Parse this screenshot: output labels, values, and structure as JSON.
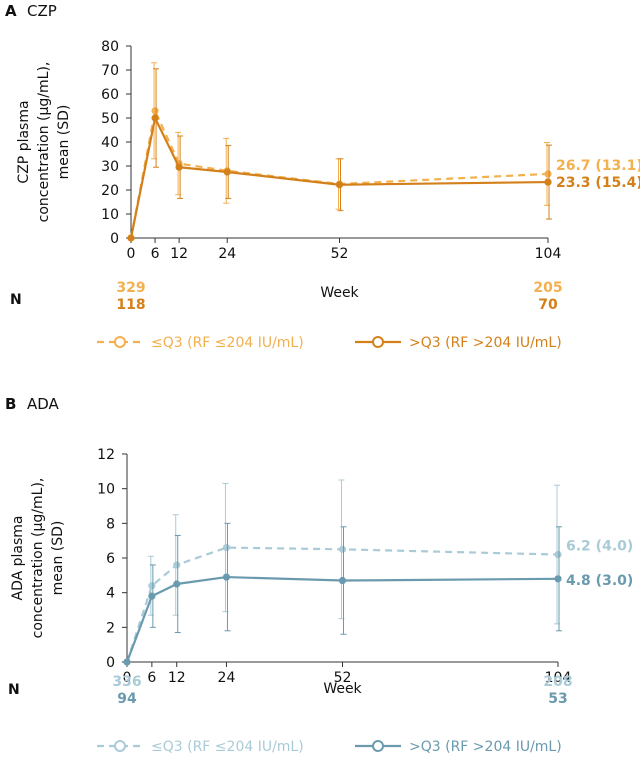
{
  "chart_data": [
    {
      "type": "line",
      "panel_letter": "A",
      "panel_title": "CZP",
      "ylabel_lines": [
        "CZP plasma",
        "concentration (µg/mL),",
        "mean (SD)"
      ],
      "xlabel": "Week",
      "x_ticks": [
        0,
        6,
        12,
        24,
        52,
        104
      ],
      "y_ticks": [
        0,
        10,
        20,
        30,
        40,
        50,
        60,
        70,
        80
      ],
      "ylim": [
        0,
        80
      ],
      "xlim": [
        0,
        104
      ],
      "grid": false,
      "n_label": "N",
      "series": [
        {
          "name": "≤Q3 (RF ≤204 IU/mL)",
          "color": "#F2B04E",
          "style": "dashed",
          "x": [
            0,
            6,
            12,
            24,
            52,
            104
          ],
          "y": [
            0,
            53,
            31,
            28,
            22.5,
            26.7
          ],
          "sd": [
            0,
            20,
            13,
            13.5,
            10.5,
            13.1
          ],
          "end_label": "26.7 (13.1)",
          "n_values": {
            "0": "329",
            "104": "205"
          }
        },
        {
          "name": ">Q3 (RF >204 IU/mL)",
          "color": "#D4801A",
          "style": "solid",
          "x": [
            0,
            6,
            12,
            24,
            52,
            104
          ],
          "y": [
            0,
            50,
            29.5,
            27.5,
            22.2,
            23.3
          ],
          "sd": [
            0,
            20.5,
            13,
            11,
            10.8,
            15.4
          ],
          "end_label": "23.3 (15.4)",
          "n_values": {
            "0": "118",
            "104": "70"
          }
        }
      ]
    },
    {
      "type": "line",
      "panel_letter": "B",
      "panel_title": "ADA",
      "ylabel_lines": [
        "ADA plasma",
        "concentration (µg/mL),",
        "mean (SD)"
      ],
      "xlabel": "Week",
      "x_ticks": [
        0,
        6,
        12,
        24,
        52,
        104
      ],
      "y_ticks": [
        0,
        2,
        4,
        6,
        8,
        10,
        12
      ],
      "ylim": [
        0,
        12
      ],
      "xlim": [
        0,
        104
      ],
      "grid": false,
      "n_label": "N",
      "series": [
        {
          "name": "≤Q3 (RF ≤204 IU/mL)",
          "color": "#A9CBD7",
          "style": "dashed",
          "x": [
            0,
            6,
            12,
            24,
            52,
            104
          ],
          "y": [
            0,
            4.4,
            5.6,
            6.6,
            6.5,
            6.2
          ],
          "sd": [
            0,
            1.7,
            2.9,
            3.7,
            4.0,
            4.0
          ],
          "end_label": "6.2 (4.0)",
          "n_values": {
            "0": "336",
            "104": "208"
          }
        },
        {
          "name": ">Q3 (RF >204 IU/mL)",
          "color": "#6A9AAE",
          "style": "solid",
          "x": [
            0,
            6,
            12,
            24,
            52,
            104
          ],
          "y": [
            0,
            3.8,
            4.5,
            4.9,
            4.7,
            4.8
          ],
          "sd": [
            0,
            1.8,
            2.8,
            3.1,
            3.1,
            3.0
          ],
          "end_label": "4.8 (3.0)",
          "n_values": {
            "0": "94",
            "104": "53"
          }
        }
      ]
    }
  ]
}
